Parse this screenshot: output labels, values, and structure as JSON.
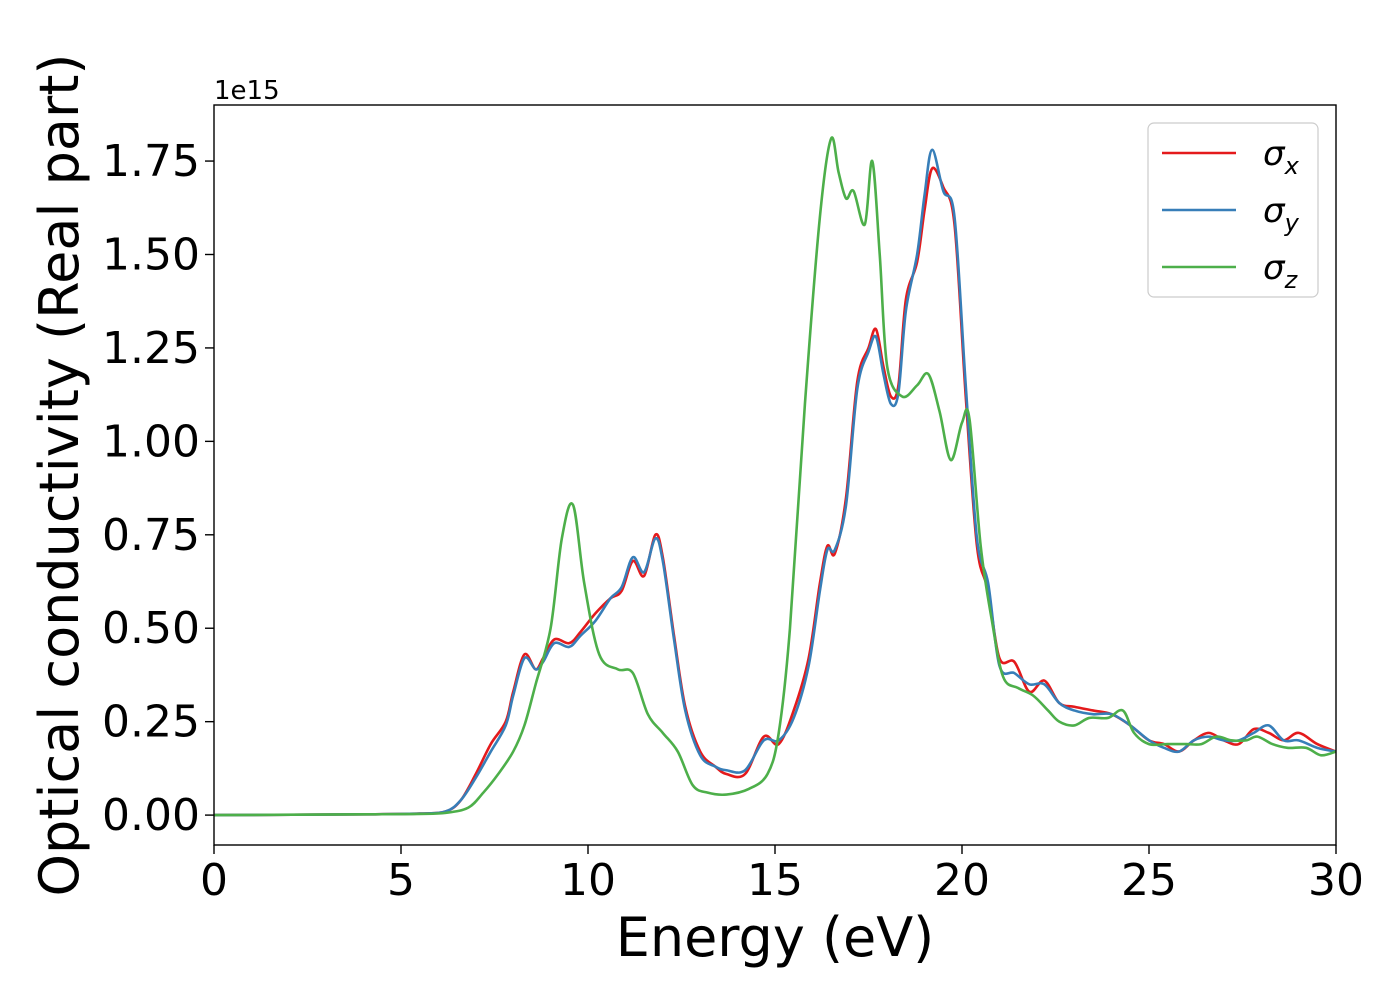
{
  "chart_data": {
    "type": "line",
    "title": "",
    "xlabel": "Energy (eV)",
    "ylabel": "Optical conductivity (Real part)",
    "y_offset_label": "1e15",
    "xlim": [
      0,
      30
    ],
    "ylim": [
      -0.08,
      1.9
    ],
    "x_ticks": [
      0,
      5,
      10,
      15,
      20,
      25,
      30
    ],
    "x_tick_labels": [
      "0",
      "5",
      "10",
      "15",
      "20",
      "25",
      "30"
    ],
    "y_ticks": [
      0.0,
      0.25,
      0.5,
      0.75,
      1.0,
      1.25,
      1.5,
      1.75
    ],
    "y_tick_labels": [
      "0.00",
      "0.25",
      "0.50",
      "0.75",
      "1.00",
      "1.25",
      "1.50",
      "1.75"
    ],
    "grid": false,
    "legend_position": "top-right",
    "series": [
      {
        "name": "σx",
        "symbol": "σ",
        "subscript": "x",
        "color": "#e41a1c",
        "points": [
          [
            0,
            0
          ],
          [
            4,
            0.002
          ],
          [
            5.5,
            0.004
          ],
          [
            6.2,
            0.01
          ],
          [
            6.6,
            0.04
          ],
          [
            7,
            0.11
          ],
          [
            7.4,
            0.19
          ],
          [
            7.8,
            0.25
          ],
          [
            8.0,
            0.33
          ],
          [
            8.3,
            0.43
          ],
          [
            8.6,
            0.39
          ],
          [
            8.8,
            0.42
          ],
          [
            9.1,
            0.47
          ],
          [
            9.5,
            0.46
          ],
          [
            9.8,
            0.49
          ],
          [
            10.2,
            0.54
          ],
          [
            10.6,
            0.58
          ],
          [
            10.9,
            0.6
          ],
          [
            11.2,
            0.68
          ],
          [
            11.5,
            0.64
          ],
          [
            11.8,
            0.75
          ],
          [
            12.0,
            0.69
          ],
          [
            12.3,
            0.48
          ],
          [
            12.6,
            0.29
          ],
          [
            13.0,
            0.17
          ],
          [
            13.4,
            0.13
          ],
          [
            13.7,
            0.11
          ],
          [
            14.2,
            0.11
          ],
          [
            14.7,
            0.21
          ],
          [
            15.1,
            0.19
          ],
          [
            15.5,
            0.28
          ],
          [
            15.9,
            0.42
          ],
          [
            16.2,
            0.62
          ],
          [
            16.4,
            0.72
          ],
          [
            16.6,
            0.7
          ],
          [
            16.9,
            0.85
          ],
          [
            17.2,
            1.16
          ],
          [
            17.5,
            1.25
          ],
          [
            17.7,
            1.3
          ],
          [
            17.9,
            1.2
          ],
          [
            18.1,
            1.12
          ],
          [
            18.3,
            1.15
          ],
          [
            18.5,
            1.38
          ],
          [
            18.8,
            1.48
          ],
          [
            19.0,
            1.62
          ],
          [
            19.2,
            1.73
          ],
          [
            19.5,
            1.68
          ],
          [
            19.8,
            1.58
          ],
          [
            20.1,
            1.12
          ],
          [
            20.4,
            0.72
          ],
          [
            20.7,
            0.6
          ],
          [
            21.0,
            0.42
          ],
          [
            21.4,
            0.41
          ],
          [
            21.8,
            0.33
          ],
          [
            22.2,
            0.36
          ],
          [
            22.6,
            0.3
          ],
          [
            23.0,
            0.29
          ],
          [
            23.5,
            0.28
          ],
          [
            24.0,
            0.27
          ],
          [
            24.5,
            0.24
          ],
          [
            25.0,
            0.2
          ],
          [
            25.4,
            0.19
          ],
          [
            25.8,
            0.17
          ],
          [
            26.2,
            0.2
          ],
          [
            26.6,
            0.22
          ],
          [
            27.0,
            0.2
          ],
          [
            27.4,
            0.19
          ],
          [
            27.8,
            0.23
          ],
          [
            28.2,
            0.22
          ],
          [
            28.6,
            0.2
          ],
          [
            29.0,
            0.22
          ],
          [
            29.5,
            0.19
          ],
          [
            30,
            0.17
          ]
        ]
      },
      {
        "name": "σy",
        "symbol": "σ",
        "subscript": "y",
        "color": "#377eb8",
        "points": [
          [
            0,
            0
          ],
          [
            4,
            0.002
          ],
          [
            5.5,
            0.004
          ],
          [
            6.2,
            0.01
          ],
          [
            6.6,
            0.04
          ],
          [
            7,
            0.1
          ],
          [
            7.4,
            0.17
          ],
          [
            7.8,
            0.24
          ],
          [
            8.0,
            0.32
          ],
          [
            8.3,
            0.42
          ],
          [
            8.6,
            0.39
          ],
          [
            8.8,
            0.41
          ],
          [
            9.1,
            0.46
          ],
          [
            9.5,
            0.45
          ],
          [
            9.8,
            0.48
          ],
          [
            10.2,
            0.52
          ],
          [
            10.6,
            0.58
          ],
          [
            10.9,
            0.61
          ],
          [
            11.2,
            0.69
          ],
          [
            11.5,
            0.65
          ],
          [
            11.8,
            0.74
          ],
          [
            12.0,
            0.68
          ],
          [
            12.3,
            0.47
          ],
          [
            12.6,
            0.28
          ],
          [
            13.0,
            0.16
          ],
          [
            13.4,
            0.13
          ],
          [
            13.7,
            0.12
          ],
          [
            14.2,
            0.12
          ],
          [
            14.7,
            0.2
          ],
          [
            15.1,
            0.2
          ],
          [
            15.5,
            0.26
          ],
          [
            15.9,
            0.4
          ],
          [
            16.2,
            0.6
          ],
          [
            16.4,
            0.71
          ],
          [
            16.6,
            0.71
          ],
          [
            16.9,
            0.83
          ],
          [
            17.2,
            1.14
          ],
          [
            17.5,
            1.24
          ],
          [
            17.7,
            1.28
          ],
          [
            17.9,
            1.18
          ],
          [
            18.1,
            1.1
          ],
          [
            18.3,
            1.13
          ],
          [
            18.5,
            1.35
          ],
          [
            18.8,
            1.5
          ],
          [
            19.0,
            1.66
          ],
          [
            19.2,
            1.78
          ],
          [
            19.5,
            1.67
          ],
          [
            19.8,
            1.6
          ],
          [
            20.1,
            1.15
          ],
          [
            20.4,
            0.74
          ],
          [
            20.7,
            0.62
          ],
          [
            21.0,
            0.4
          ],
          [
            21.4,
            0.38
          ],
          [
            21.8,
            0.35
          ],
          [
            22.2,
            0.35
          ],
          [
            22.6,
            0.3
          ],
          [
            23.0,
            0.28
          ],
          [
            23.5,
            0.27
          ],
          [
            24.0,
            0.27
          ],
          [
            24.5,
            0.24
          ],
          [
            25.0,
            0.2
          ],
          [
            25.4,
            0.18
          ],
          [
            25.8,
            0.17
          ],
          [
            26.2,
            0.2
          ],
          [
            26.6,
            0.21
          ],
          [
            27.0,
            0.2
          ],
          [
            27.4,
            0.2
          ],
          [
            27.8,
            0.22
          ],
          [
            28.2,
            0.24
          ],
          [
            28.6,
            0.2
          ],
          [
            29.0,
            0.2
          ],
          [
            29.5,
            0.18
          ],
          [
            30,
            0.17
          ]
        ]
      },
      {
        "name": "σz",
        "symbol": "σ",
        "subscript": "z",
        "color": "#4daf4a",
        "points": [
          [
            0,
            0
          ],
          [
            4,
            0.002
          ],
          [
            5.5,
            0.003
          ],
          [
            6.2,
            0.006
          ],
          [
            6.8,
            0.02
          ],
          [
            7.2,
            0.06
          ],
          [
            7.6,
            0.11
          ],
          [
            8.0,
            0.17
          ],
          [
            8.3,
            0.24
          ],
          [
            8.6,
            0.35
          ],
          [
            9.0,
            0.5
          ],
          [
            9.3,
            0.74
          ],
          [
            9.6,
            0.83
          ],
          [
            9.9,
            0.62
          ],
          [
            10.3,
            0.43
          ],
          [
            10.8,
            0.39
          ],
          [
            11.2,
            0.38
          ],
          [
            11.6,
            0.27
          ],
          [
            12.0,
            0.22
          ],
          [
            12.4,
            0.17
          ],
          [
            12.8,
            0.08
          ],
          [
            13.2,
            0.06
          ],
          [
            13.7,
            0.055
          ],
          [
            14.3,
            0.07
          ],
          [
            14.8,
            0.11
          ],
          [
            15.1,
            0.22
          ],
          [
            15.4,
            0.5
          ],
          [
            15.8,
            1.1
          ],
          [
            16.2,
            1.6
          ],
          [
            16.5,
            1.81
          ],
          [
            16.7,
            1.72
          ],
          [
            16.9,
            1.65
          ],
          [
            17.1,
            1.67
          ],
          [
            17.4,
            1.58
          ],
          [
            17.6,
            1.75
          ],
          [
            17.8,
            1.5
          ],
          [
            18.0,
            1.2
          ],
          [
            18.4,
            1.12
          ],
          [
            18.8,
            1.15
          ],
          [
            19.1,
            1.18
          ],
          [
            19.4,
            1.08
          ],
          [
            19.7,
            0.95
          ],
          [
            20.0,
            1.05
          ],
          [
            20.2,
            1.06
          ],
          [
            20.5,
            0.72
          ],
          [
            20.8,
            0.52
          ],
          [
            21.1,
            0.37
          ],
          [
            21.5,
            0.34
          ],
          [
            21.9,
            0.32
          ],
          [
            22.3,
            0.28
          ],
          [
            22.6,
            0.25
          ],
          [
            23.0,
            0.24
          ],
          [
            23.4,
            0.26
          ],
          [
            23.9,
            0.26
          ],
          [
            24.3,
            0.28
          ],
          [
            24.6,
            0.22
          ],
          [
            25.0,
            0.19
          ],
          [
            25.5,
            0.19
          ],
          [
            26.0,
            0.19
          ],
          [
            26.4,
            0.19
          ],
          [
            26.8,
            0.21
          ],
          [
            27.2,
            0.2
          ],
          [
            27.6,
            0.2
          ],
          [
            27.9,
            0.21
          ],
          [
            28.3,
            0.19
          ],
          [
            28.7,
            0.18
          ],
          [
            29.2,
            0.18
          ],
          [
            29.6,
            0.16
          ],
          [
            30,
            0.17
          ]
        ]
      }
    ]
  }
}
